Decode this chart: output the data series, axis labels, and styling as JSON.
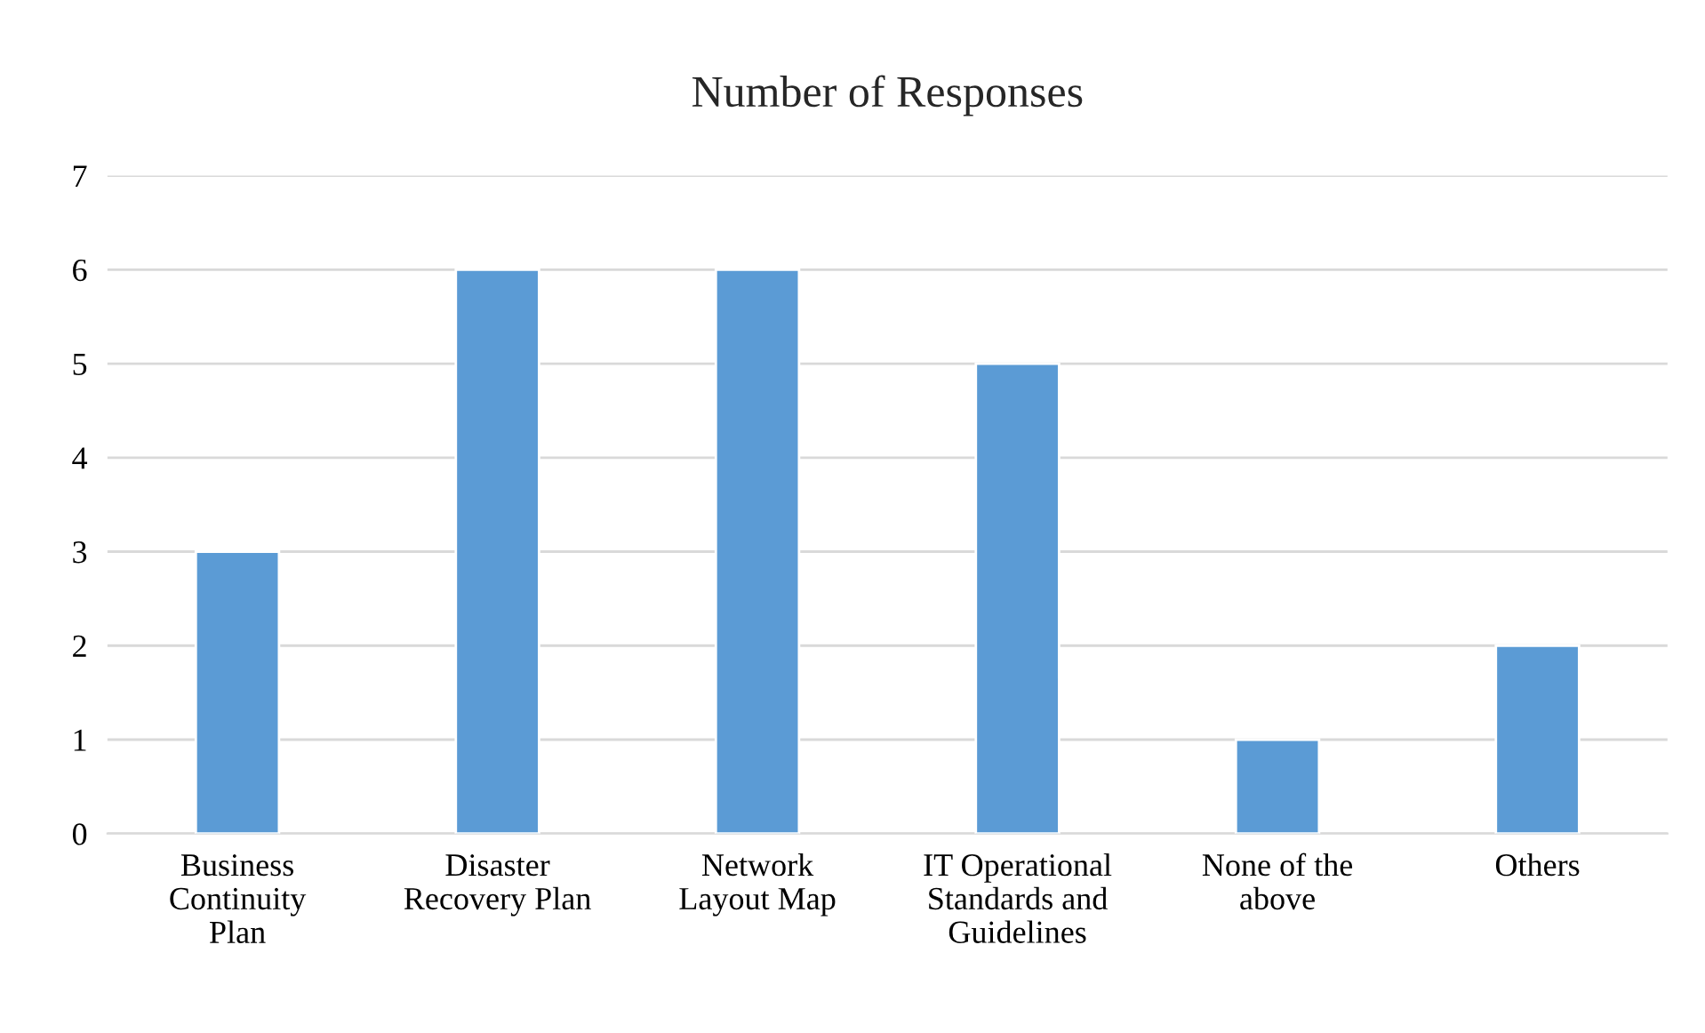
{
  "chart_data": {
    "type": "bar",
    "title": "Number of Responses",
    "categories": [
      "Business\nContinuity\nPlan",
      "Disaster\nRecovery Plan",
      "Network\nLayout Map",
      "IT Operational\nStandards and\nGuidelines",
      "None of the\nabove",
      "Others"
    ],
    "values": [
      3,
      6,
      6,
      5,
      1,
      2
    ],
    "color": "#5b9bd5",
    "ylim": [
      0,
      7
    ],
    "yticks": [
      0,
      1,
      2,
      3,
      4,
      5,
      6,
      7
    ],
    "grid": "y",
    "legend": false
  }
}
